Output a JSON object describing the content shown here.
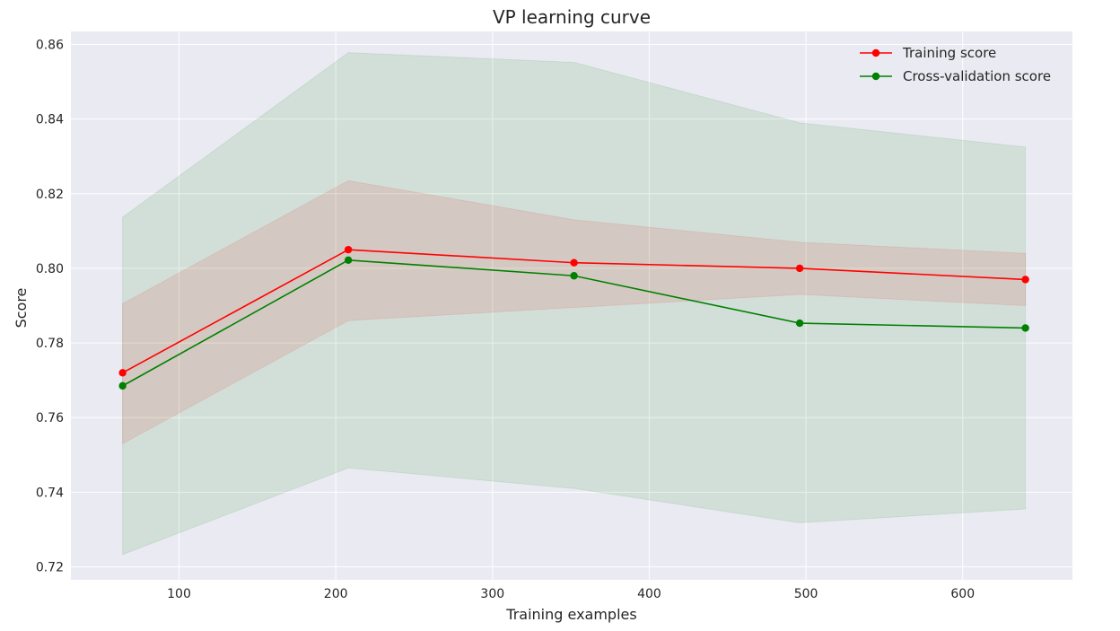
{
  "chart_data": {
    "type": "line",
    "title": "VP learning curve",
    "xlabel": "Training examples",
    "ylabel": "Score",
    "xlim": [
      31,
      670
    ],
    "ylim": [
      0.7165,
      0.8635
    ],
    "xticks": [
      100,
      200,
      300,
      400,
      500,
      600
    ],
    "yticks": [
      0.72,
      0.74,
      0.76,
      0.78,
      0.8,
      0.82,
      0.84,
      0.86
    ],
    "ytick_labels": [
      "0.72",
      "0.74",
      "0.76",
      "0.78",
      "0.80",
      "0.82",
      "0.84",
      "0.86"
    ],
    "grid": true,
    "legend_position": "top-right",
    "x": [
      64,
      208,
      352,
      496,
      640
    ],
    "series": [
      {
        "name": "Training score",
        "color": "#ff0000",
        "marker": "o",
        "values": [
          0.772,
          0.805,
          0.8015,
          0.8,
          0.797
        ],
        "band_lower": [
          0.753,
          0.786,
          0.7895,
          0.793,
          0.79
        ],
        "band_upper": [
          0.7905,
          0.8235,
          0.813,
          0.807,
          0.804
        ]
      },
      {
        "name": "Cross-validation score",
        "color": "#008000",
        "marker": "o",
        "values": [
          0.7685,
          0.8022,
          0.798,
          0.7853,
          0.784
        ],
        "band_lower": [
          0.7233,
          0.7465,
          0.741,
          0.7318,
          0.7355
        ],
        "band_upper": [
          0.8137,
          0.8578,
          0.8552,
          0.839,
          0.8325
        ]
      }
    ]
  }
}
